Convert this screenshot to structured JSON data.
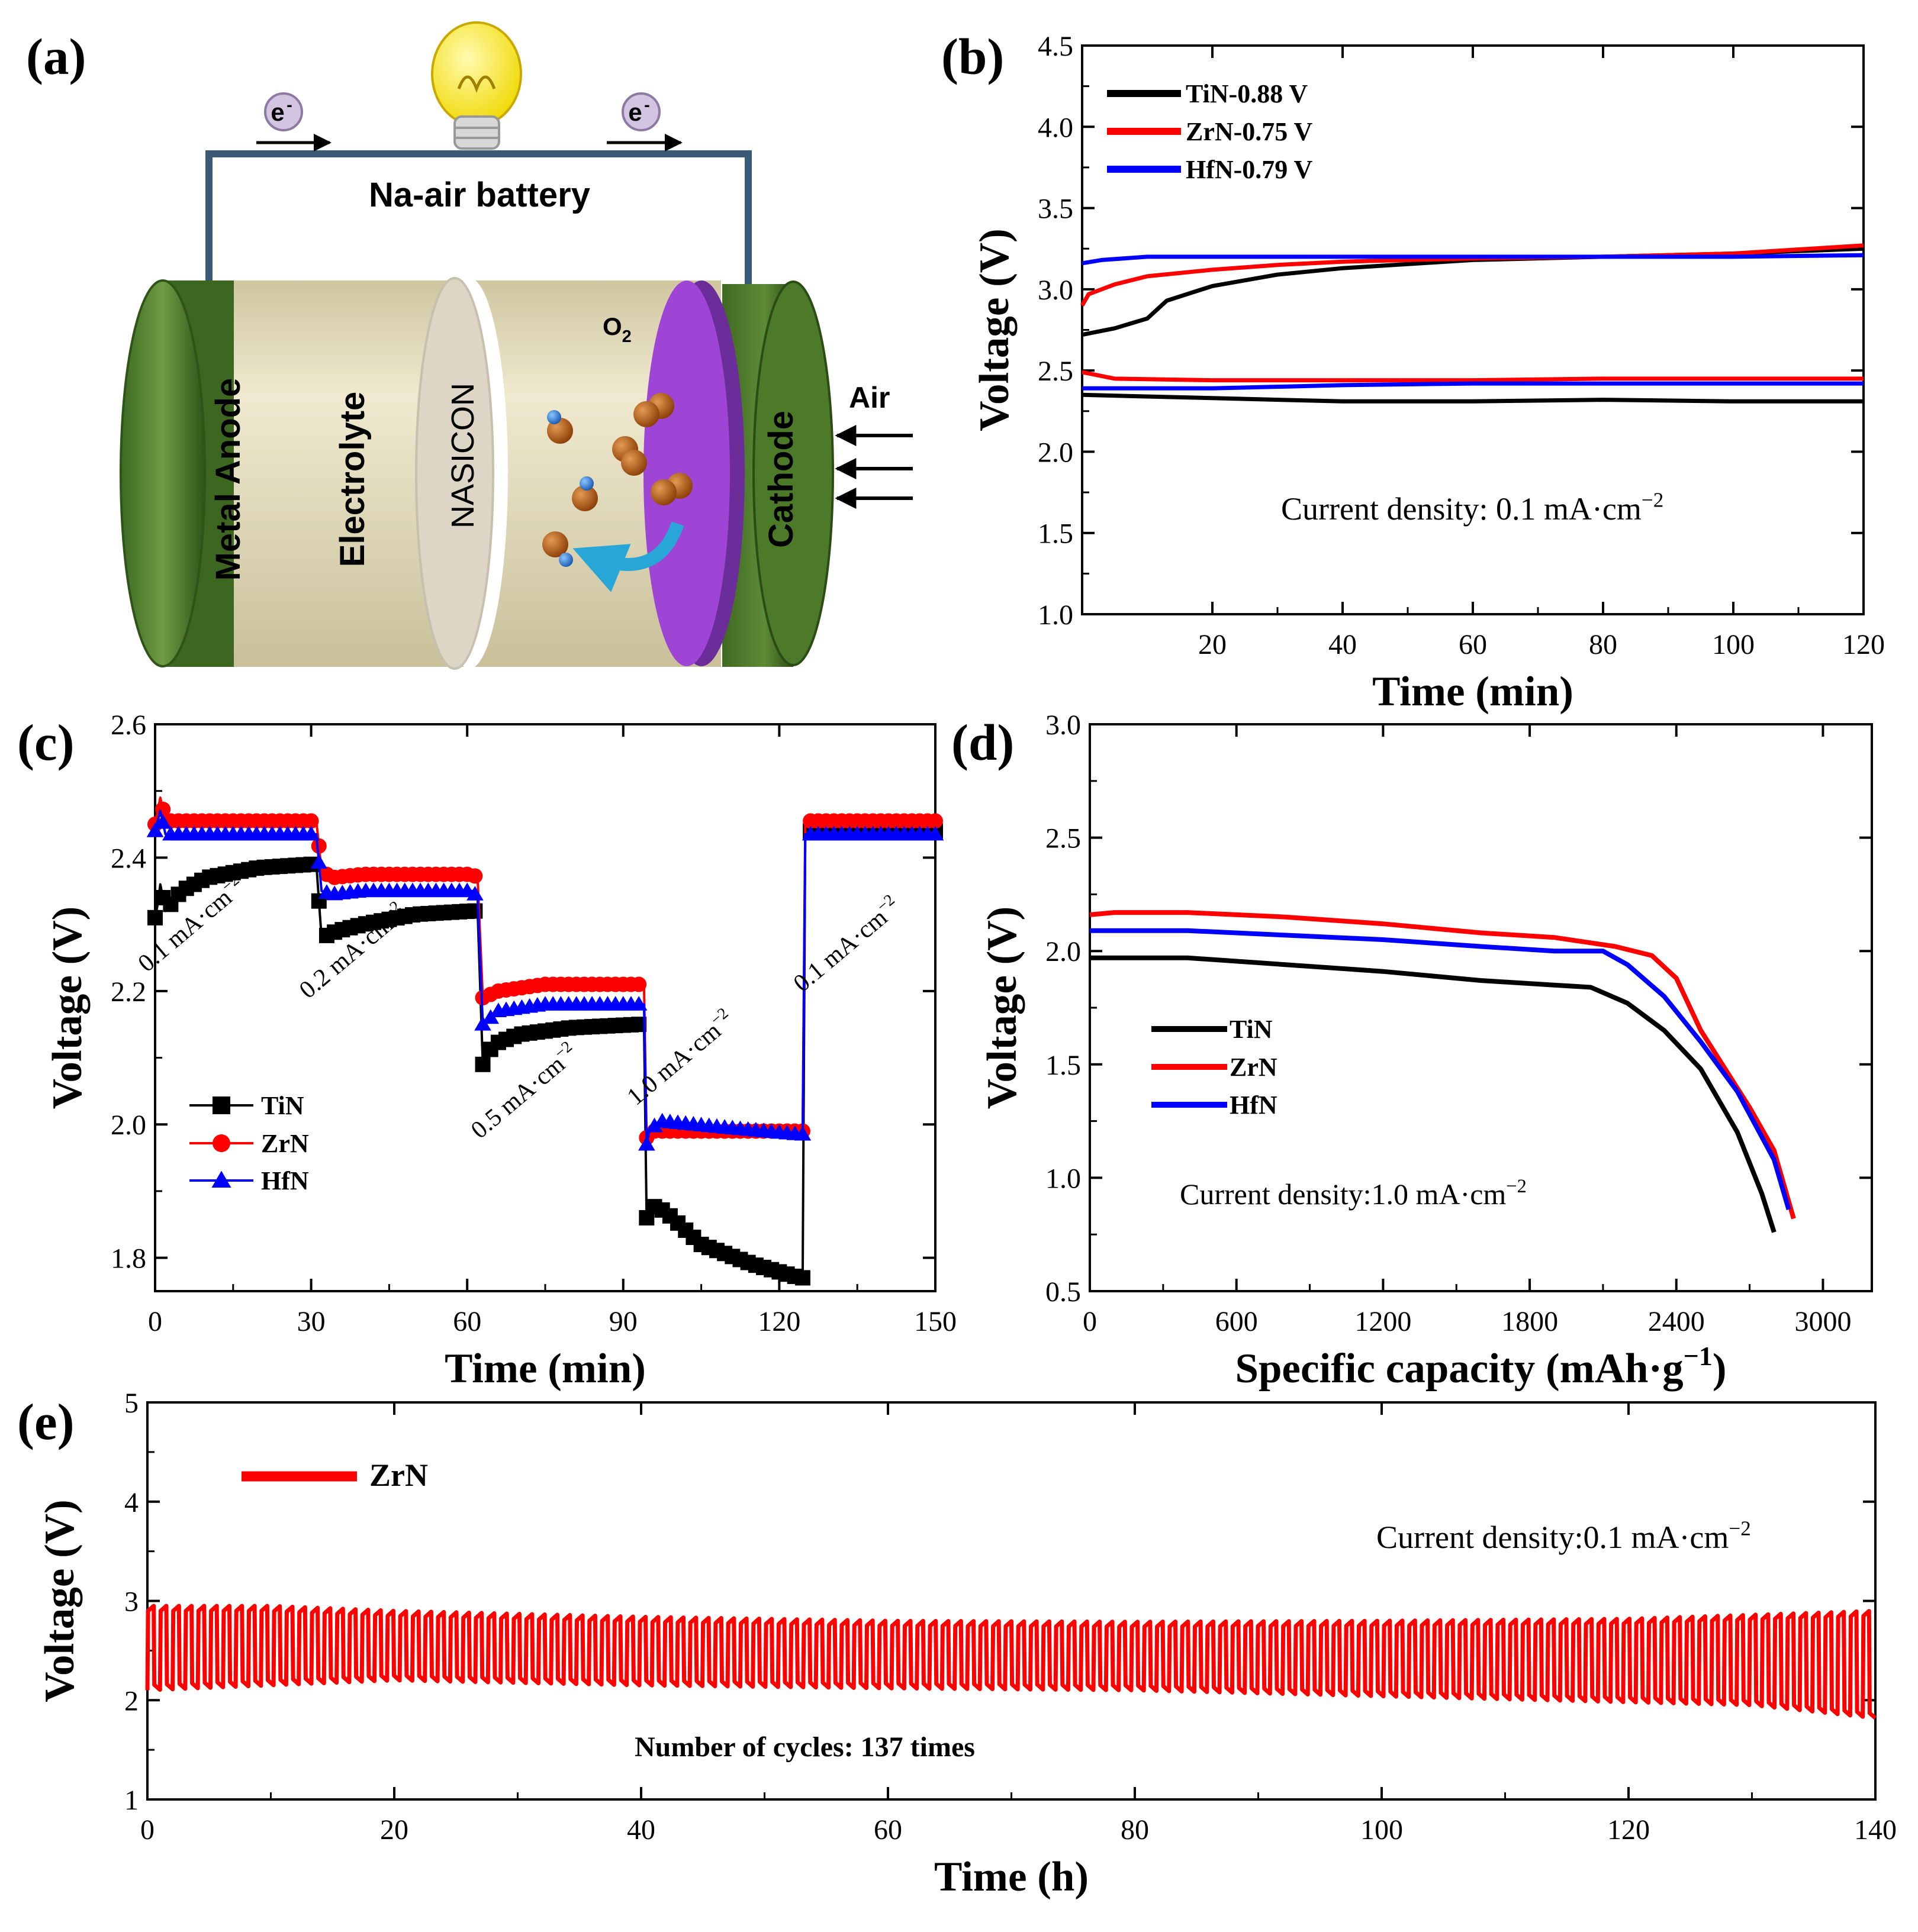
{
  "panels": {
    "a": {
      "label": "(a)",
      "title": "Na-air battery",
      "electron": "e",
      "electron_sup": "-",
      "components": {
        "anode": "Metal Anode",
        "electrolyte": "Electrolyte",
        "separator": "NASICON",
        "cathode": "Cathode"
      },
      "oxygen": "O",
      "oxygen_sub": "2",
      "air": "Air",
      "colors": {
        "anode": "#4e7a2e",
        "electrolyte": "#e9e2c2",
        "separator": "#dcd6c8",
        "cathode_face": "#9f45d6",
        "wire": "#3b5a78",
        "bulb": "#f5e200",
        "o2_ball": "#b35a14",
        "na_ball": "#2a7ed6",
        "arrow": "#29a6d8"
      }
    },
    "b": {
      "label": "(b)"
    },
    "c": {
      "label": "(c)"
    },
    "d": {
      "label": "(d)"
    },
    "e": {
      "label": "(e)"
    }
  },
  "chart_data": [
    {
      "id": "b",
      "type": "line",
      "xlabel": "Time (min)",
      "ylabel": "Voltage (V)",
      "xlim": [
        0,
        120
      ],
      "ylim": [
        1.0,
        4.5
      ],
      "xticks": [
        20,
        40,
        60,
        80,
        100,
        120
      ],
      "yticks": [
        1.0,
        1.5,
        2.0,
        2.5,
        3.0,
        3.5,
        4.0,
        4.5
      ],
      "annotation": {
        "text": "Current density: 0.1 mA·cm",
        "sup": "−2"
      },
      "legend_position": "top-left",
      "series": [
        {
          "name": "TiN-0.88 V",
          "color": "#000000",
          "charge": [
            [
              0,
              2.72
            ],
            [
              5,
              2.76
            ],
            [
              10,
              2.82
            ],
            [
              13,
              2.93
            ],
            [
              20,
              3.02
            ],
            [
              30,
              3.09
            ],
            [
              40,
              3.13
            ],
            [
              60,
              3.18
            ],
            [
              80,
              3.2
            ],
            [
              100,
              3.22
            ],
            [
              120,
              3.25
            ]
          ],
          "discharge": [
            [
              0,
              2.35
            ],
            [
              20,
              2.33
            ],
            [
              40,
              2.31
            ],
            [
              60,
              2.31
            ],
            [
              80,
              2.32
            ],
            [
              100,
              2.31
            ],
            [
              120,
              2.31
            ]
          ]
        },
        {
          "name": "ZrN-0.75 V",
          "color": "#ff0000",
          "charge": [
            [
              0,
              2.9
            ],
            [
              1,
              2.97
            ],
            [
              5,
              3.03
            ],
            [
              10,
              3.08
            ],
            [
              20,
              3.12
            ],
            [
              30,
              3.15
            ],
            [
              40,
              3.17
            ],
            [
              60,
              3.19
            ],
            [
              80,
              3.2
            ],
            [
              100,
              3.22
            ],
            [
              120,
              3.27
            ]
          ],
          "discharge": [
            [
              0,
              2.49
            ],
            [
              5,
              2.45
            ],
            [
              20,
              2.44
            ],
            [
              40,
              2.44
            ],
            [
              60,
              2.44
            ],
            [
              80,
              2.45
            ],
            [
              100,
              2.45
            ],
            [
              120,
              2.45
            ]
          ]
        },
        {
          "name": "HfN-0.79 V",
          "color": "#0000ff",
          "charge": [
            [
              0,
              3.16
            ],
            [
              3,
              3.18
            ],
            [
              10,
              3.2
            ],
            [
              20,
              3.2
            ],
            [
              40,
              3.2
            ],
            [
              60,
              3.2
            ],
            [
              80,
              3.2
            ],
            [
              100,
              3.2
            ],
            [
              120,
              3.21
            ]
          ],
          "discharge": [
            [
              0,
              2.39
            ],
            [
              20,
              2.39
            ],
            [
              40,
              2.41
            ],
            [
              60,
              2.42
            ],
            [
              80,
              2.42
            ],
            [
              100,
              2.42
            ],
            [
              120,
              2.42
            ]
          ]
        }
      ]
    },
    {
      "id": "c",
      "type": "line",
      "xlabel": "Time (min)",
      "ylabel": "Voltage (V)",
      "xlim": [
        0,
        150
      ],
      "ylim": [
        1.75,
        2.6
      ],
      "xticks": [
        0,
        30,
        60,
        90,
        120,
        150
      ],
      "yticks": [
        1.8,
        2.0,
        2.2,
        2.4,
        2.6
      ],
      "legend_position": "bottom-left",
      "step_labels": [
        {
          "text": "0.1 mA·cm",
          "sup": "−2",
          "t": 8,
          "v": 2.29
        },
        {
          "text": "0.2 mA·cm",
          "sup": "−2",
          "t": 39,
          "v": 2.25
        },
        {
          "text": "0.5 mA·cm",
          "sup": "−2",
          "t": 72,
          "v": 2.04
        },
        {
          "text": "1.0 mA·cm",
          "sup": "−2",
          "t": 102,
          "v": 2.09
        },
        {
          "text": "0.1 mA·cm",
          "sup": "−2",
          "t": 134,
          "v": 2.26
        }
      ],
      "series": [
        {
          "name": "TiN",
          "color": "#000000",
          "marker": "square",
          "points": [
            [
              0,
              2.31
            ],
            [
              0.5,
              2.33
            ],
            [
              1,
              2.36
            ],
            [
              2,
              2.32
            ],
            [
              5,
              2.35
            ],
            [
              10,
              2.37
            ],
            [
              20,
              2.385
            ],
            [
              30,
              2.39
            ],
            [
              31,
              2.39
            ],
            [
              32,
              2.28
            ],
            [
              35,
              2.29
            ],
            [
              40,
              2.3
            ],
            [
              50,
              2.315
            ],
            [
              61,
              2.32
            ],
            [
              62,
              2.32
            ],
            [
              63,
              2.09
            ],
            [
              65,
              2.12
            ],
            [
              70,
              2.135
            ],
            [
              80,
              2.145
            ],
            [
              93,
              2.15
            ],
            [
              94,
              2.15
            ],
            [
              94.5,
              1.86
            ],
            [
              95,
              1.88
            ],
            [
              98,
              1.87
            ],
            [
              105,
              1.82
            ],
            [
              115,
              1.79
            ],
            [
              124,
              1.77
            ],
            [
              124.5,
              1.77
            ],
            [
              125,
              2.44
            ],
            [
              135,
              2.44
            ],
            [
              150,
              2.44
            ]
          ]
        },
        {
          "name": "ZrN",
          "color": "#ff0000",
          "marker": "circle",
          "points": [
            [
              0,
              2.45
            ],
            [
              1,
              2.49
            ],
            [
              2,
              2.455
            ],
            [
              10,
              2.455
            ],
            [
              30,
              2.455
            ],
            [
              31,
              2.455
            ],
            [
              32,
              2.38
            ],
            [
              34,
              2.37
            ],
            [
              40,
              2.375
            ],
            [
              61,
              2.375
            ],
            [
              62,
              2.37
            ],
            [
              63,
              2.19
            ],
            [
              66,
              2.2
            ],
            [
              75,
              2.21
            ],
            [
              93,
              2.21
            ],
            [
              94,
              2.21
            ],
            [
              94.5,
              1.98
            ],
            [
              96,
              1.99
            ],
            [
              110,
              1.99
            ],
            [
              124,
              1.99
            ],
            [
              124.5,
              1.99
            ],
            [
              125,
              2.455
            ],
            [
              135,
              2.455
            ],
            [
              150,
              2.455
            ]
          ]
        },
        {
          "name": "HfN",
          "color": "#0000ff",
          "marker": "triangle",
          "points": [
            [
              0,
              2.44
            ],
            [
              1,
              2.47
            ],
            [
              2,
              2.435
            ],
            [
              10,
              2.435
            ],
            [
              30,
              2.435
            ],
            [
              31,
              2.435
            ],
            [
              32,
              2.35
            ],
            [
              34,
              2.345
            ],
            [
              40,
              2.35
            ],
            [
              61,
              2.35
            ],
            [
              62,
              2.34
            ],
            [
              63,
              2.15
            ],
            [
              66,
              2.17
            ],
            [
              75,
              2.18
            ],
            [
              93,
              2.18
            ],
            [
              94,
              2.18
            ],
            [
              94.5,
              1.97
            ],
            [
              95,
              1.99
            ],
            [
              97,
              2.005
            ],
            [
              110,
              1.995
            ],
            [
              124,
              1.985
            ],
            [
              124.5,
              1.985
            ],
            [
              125,
              2.435
            ],
            [
              135,
              2.435
            ],
            [
              150,
              2.435
            ]
          ]
        }
      ]
    },
    {
      "id": "d",
      "type": "line",
      "xlabel": "Specific capacity (mAh·g",
      "xlabel_sup": "−1",
      "xlabel_end": ")",
      "ylabel": "Voltage (V)",
      "xlim": [
        0,
        3200
      ],
      "ylim": [
        0.5,
        3.0
      ],
      "xticks": [
        0,
        600,
        1200,
        1800,
        2400,
        3000
      ],
      "yticks": [
        0.5,
        1.0,
        1.5,
        2.0,
        2.5,
        3.0
      ],
      "annotation": {
        "text": "Current density:1.0 mA·cm",
        "sup": "−2"
      },
      "legend_position": "middle-left",
      "series": [
        {
          "name": "TiN",
          "color": "#000000",
          "points": [
            [
              0,
              1.97
            ],
            [
              400,
              1.97
            ],
            [
              800,
              1.94
            ],
            [
              1200,
              1.91
            ],
            [
              1600,
              1.87
            ],
            [
              1900,
              1.85
            ],
            [
              2050,
              1.84
            ],
            [
              2200,
              1.77
            ],
            [
              2350,
              1.65
            ],
            [
              2500,
              1.48
            ],
            [
              2650,
              1.2
            ],
            [
              2750,
              0.93
            ],
            [
              2800,
              0.76
            ]
          ]
        },
        {
          "name": "ZrN",
          "color": "#ff0000",
          "points": [
            [
              0,
              2.16
            ],
            [
              100,
              2.17
            ],
            [
              400,
              2.17
            ],
            [
              800,
              2.15
            ],
            [
              1200,
              2.12
            ],
            [
              1600,
              2.08
            ],
            [
              1900,
              2.06
            ],
            [
              2150,
              2.02
            ],
            [
              2300,
              1.98
            ],
            [
              2400,
              1.88
            ],
            [
              2500,
              1.65
            ],
            [
              2600,
              1.48
            ],
            [
              2700,
              1.31
            ],
            [
              2800,
              1.12
            ],
            [
              2880,
              0.82
            ]
          ]
        },
        {
          "name": "HfN",
          "color": "#0000ff",
          "points": [
            [
              0,
              2.09
            ],
            [
              400,
              2.09
            ],
            [
              800,
              2.07
            ],
            [
              1200,
              2.05
            ],
            [
              1600,
              2.02
            ],
            [
              1900,
              2.0
            ],
            [
              2100,
              2.0
            ],
            [
              2200,
              1.94
            ],
            [
              2350,
              1.8
            ],
            [
              2500,
              1.6
            ],
            [
              2650,
              1.38
            ],
            [
              2800,
              1.08
            ],
            [
              2860,
              0.86
            ]
          ]
        }
      ]
    },
    {
      "id": "e",
      "type": "line",
      "xlabel": "Time (h)",
      "ylabel": "Voltage (V)",
      "xlim": [
        0,
        140
      ],
      "ylim": [
        1,
        5
      ],
      "xticks": [
        0,
        20,
        40,
        60,
        80,
        100,
        120,
        140
      ],
      "yticks": [
        1,
        2,
        3,
        4,
        5
      ],
      "cycles": 137,
      "annotation": {
        "text": "Current density:0.1 mA·cm",
        "sup": "−2"
      },
      "note": "Number of cycles: 137 times",
      "legend_position": "top-left",
      "series": [
        {
          "name": "ZrN",
          "color": "#ff0000",
          "upper_envelope": [
            [
              0,
              2.95
            ],
            [
              10,
              2.95
            ],
            [
              20,
              2.9
            ],
            [
              40,
              2.84
            ],
            [
              60,
              2.8
            ],
            [
              80,
              2.79
            ],
            [
              100,
              2.8
            ],
            [
              120,
              2.82
            ],
            [
              130,
              2.86
            ],
            [
              140,
              2.9
            ]
          ],
          "lower_envelope": [
            [
              0,
              2.1
            ],
            [
              10,
              2.15
            ],
            [
              20,
              2.2
            ],
            [
              40,
              2.15
            ],
            [
              60,
              2.12
            ],
            [
              80,
              2.1
            ],
            [
              100,
              2.04
            ],
            [
              120,
              1.98
            ],
            [
              130,
              1.95
            ],
            [
              140,
              1.82
            ]
          ]
        }
      ]
    }
  ]
}
